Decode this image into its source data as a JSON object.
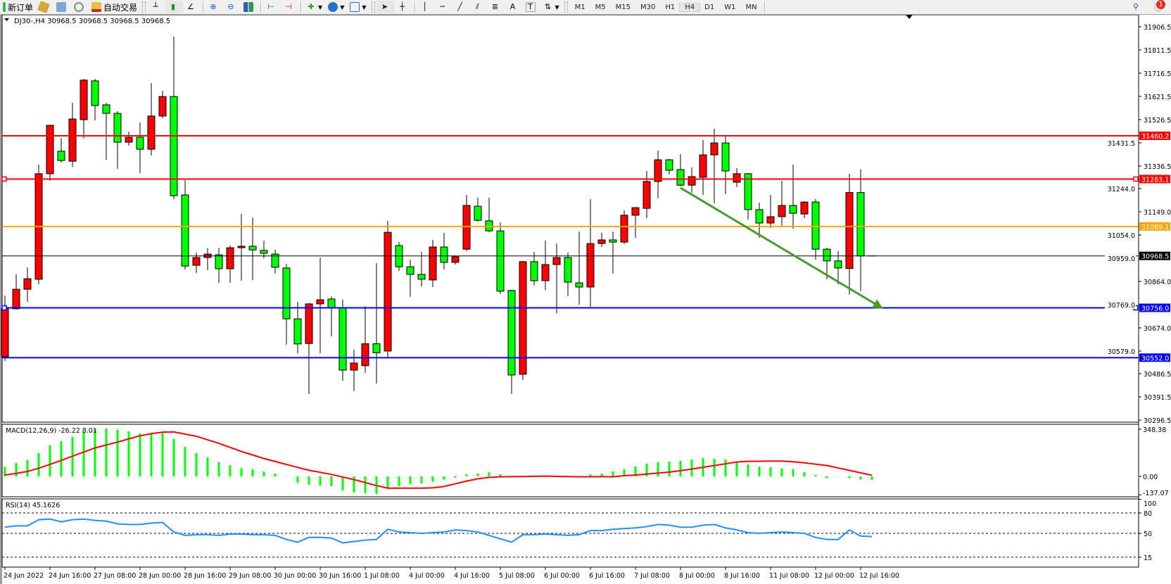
{
  "toolbar": {
    "new_order_label": "新订单",
    "auto_trading_label": "自动交易",
    "timeframes": [
      "M1",
      "M5",
      "M15",
      "M30",
      "H1",
      "H4",
      "D1",
      "W1",
      "MN"
    ],
    "active_timeframe": "H4",
    "notification_count": "1",
    "icons": [
      "new-order-icon",
      "history-icon",
      "navigator-icon",
      "signals-icon",
      "auto-trading-icon",
      "bar-chart-icon",
      "candlestick-icon",
      "line-chart-icon",
      "zoom-in-icon",
      "zoom-out-icon",
      "tile-windows-icon",
      "autoscroll-icon",
      "chart-shift-icon",
      "indicators-icon",
      "periods-icon",
      "templates-icon",
      "cursor-icon",
      "crosshair-icon",
      "vertical-line-icon",
      "horizontal-line-icon",
      "trendline-icon",
      "equidistant-channel-icon",
      "fibonacci-icon",
      "text-icon",
      "text-label-icon",
      "arrows-icon",
      "search-icon",
      "notification-icon"
    ]
  },
  "chart_header": "DJ30-,H4  30968.5 30968.5 30968.5 30968.5",
  "chart_data": [
    {
      "type": "candlestick",
      "symbol": "DJ30-",
      "timeframe": "H4",
      "up_color": "#ff0000",
      "down_color": "#00ff00",
      "price_ticks": [
        "31906.5",
        "31811.5",
        "31716.5",
        "31621.5",
        "31526.5",
        "31431.5",
        "31336.5",
        "31244.0",
        "31149.0",
        "31054.0",
        "30959.0",
        "30864.0",
        "30769.0",
        "30674.0",
        "30579.0",
        "30486.5",
        "30391.5",
        "30296.5"
      ],
      "ylim": [
        30296.5,
        31906.5
      ],
      "time_labels": [
        "24 Jun 2022",
        "24 Jun 16:00",
        "27 Jun 08:00",
        "28 Jun 00:00",
        "28 Jun 16:00",
        "29 Jun 08:00",
        "30 Jun 00:00",
        "30 Jun 16:00",
        "1 Jul 08:00",
        "4 Jul 00:00",
        "4 Jul 16:00",
        "5 Jul 08:00",
        "6 Jul 00:00",
        "6 Jul 16:00",
        "7 Jul 08:00",
        "8 Jul 00:00",
        "8 Jul 16:00",
        "11 Jul 08:00",
        "12 Jul 00:00",
        "12 Jul 16:00"
      ],
      "ohlc": [
        [
          30556,
          30806,
          30538,
          30754
        ],
        [
          30752,
          30893,
          30749,
          30832
        ],
        [
          30832,
          30922,
          30780,
          30875
        ],
        [
          30873,
          31342,
          30852,
          31305
        ],
        [
          31305,
          31505,
          31276,
          31503
        ],
        [
          31397,
          31451,
          31351,
          31359
        ],
        [
          31356,
          31595,
          31333,
          31529
        ],
        [
          31526,
          31693,
          31449,
          31688
        ],
        [
          31685,
          31693,
          31523,
          31584
        ],
        [
          31587,
          31595,
          31362,
          31552
        ],
        [
          31552,
          31561,
          31325,
          31434
        ],
        [
          31434,
          31477,
          31420,
          31454
        ],
        [
          31454,
          31515,
          31307,
          31405
        ],
        [
          31405,
          31676,
          31379,
          31541
        ],
        [
          31541,
          31644,
          31532,
          31621
        ],
        [
          31621,
          31866,
          31201,
          31215
        ],
        [
          31218,
          31279,
          30913,
          30927
        ],
        [
          30930,
          30982,
          30898,
          30962
        ],
        [
          30962,
          31000,
          30910,
          30976
        ],
        [
          30973,
          31002,
          30858,
          30916
        ],
        [
          30916,
          31011,
          30858,
          31002
        ],
        [
          31002,
          31140,
          30867,
          31008
        ],
        [
          31008,
          31126,
          30870,
          30993
        ],
        [
          30991,
          31031,
          30959,
          30979
        ],
        [
          30976,
          30994,
          30896,
          30922
        ],
        [
          30919,
          30936,
          30605,
          30711
        ],
        [
          30711,
          30780,
          30570,
          30608
        ],
        [
          30610,
          30777,
          30403,
          30772
        ],
        [
          30772,
          30962,
          30570,
          30789
        ],
        [
          30792,
          30803,
          30639,
          30757
        ],
        [
          30757,
          30789,
          30458,
          30501
        ],
        [
          30501,
          30585,
          30415,
          30530
        ],
        [
          30519,
          30763,
          30490,
          30609
        ],
        [
          30609,
          30939,
          30446,
          30572
        ],
        [
          30579,
          31112,
          30553,
          31065
        ],
        [
          31011,
          31025,
          30907,
          30924
        ],
        [
          30924,
          30953,
          30801,
          30893
        ],
        [
          30893,
          30985,
          30844,
          30873
        ],
        [
          30870,
          31034,
          30841,
          31005
        ],
        [
          31005,
          31063,
          30913,
          30942
        ],
        [
          30942,
          30971,
          30933,
          30965
        ],
        [
          30996,
          31218,
          30988,
          31175
        ],
        [
          31172,
          31207,
          31109,
          31114
        ],
        [
          31112,
          31207,
          31065,
          31071
        ],
        [
          31071,
          31106,
          30812,
          30824
        ],
        [
          30827,
          30830,
          30403,
          30481
        ],
        [
          30484,
          30948,
          30461,
          30945
        ],
        [
          30945,
          30985,
          30847,
          30867
        ],
        [
          30867,
          31031,
          30829,
          30933
        ],
        [
          30933,
          31019,
          30734,
          30962
        ],
        [
          30962,
          30982,
          30803,
          30861
        ],
        [
          30858,
          31068,
          30769,
          30841
        ],
        [
          30841,
          31201,
          30760,
          31019
        ],
        [
          31019,
          31063,
          31005,
          31034
        ],
        [
          31034,
          31068,
          30896,
          31025
        ],
        [
          31025,
          31155,
          31017,
          31135
        ],
        [
          31135,
          31169,
          31042,
          31166
        ],
        [
          31163,
          31316,
          31123,
          31273
        ],
        [
          31273,
          31400,
          31204,
          31362
        ],
        [
          31362,
          31365,
          31302,
          31319
        ],
        [
          31322,
          31385,
          31253,
          31258
        ],
        [
          31258,
          31331,
          31227,
          31293
        ],
        [
          31290,
          31443,
          31218,
          31382
        ],
        [
          31382,
          31489,
          31184,
          31431
        ],
        [
          31431,
          31463,
          31221,
          31316
        ],
        [
          31270,
          31328,
          31250,
          31305
        ],
        [
          31305,
          31308,
          31117,
          31158
        ],
        [
          31158,
          31187,
          31042,
          31103
        ],
        [
          31103,
          31218,
          31083,
          31129
        ],
        [
          31129,
          31276,
          31086,
          31175
        ],
        [
          31175,
          31342,
          31080,
          31143
        ],
        [
          31140,
          31192,
          31123,
          31189
        ],
        [
          31189,
          31201,
          30953,
          30996
        ],
        [
          30996,
          31002,
          30873,
          30948
        ],
        [
          30948,
          30988,
          30852,
          30919
        ],
        [
          30917,
          31305,
          30810,
          31228
        ],
        [
          31228,
          31323,
          30825,
          30968.5
        ],
        [
          30968.5,
          30968.5,
          30968.5,
          30968.5
        ]
      ],
      "horizontal_lines": [
        {
          "price": "31460.2",
          "color": "#ff0000"
        },
        {
          "price": "31283.1",
          "color": "#ff0000"
        },
        {
          "price": "31089.1",
          "color": "#ffa500"
        },
        {
          "price": "30968.5",
          "color": "#000000",
          "label_bg": "#000000"
        },
        {
          "price": "30756.0",
          "color": "#0000ff"
        },
        {
          "price": "30552.0",
          "color": "#0000ff"
        }
      ],
      "trendline": {
        "color": "#4a9a2a",
        "from": {
          "bar": 61,
          "price": 31247
        },
        "to": {
          "bar": 79,
          "price": 30752
        },
        "arrow": true
      }
    },
    {
      "type": "bar+line",
      "title": "MACD(12,26,9) -26.22 8.01",
      "axis_labels": [
        "348.38",
        "0.00",
        "-137.07"
      ],
      "ylim": [
        -137.07,
        348.38
      ],
      "histogram_color": "#00ff00",
      "signal_color": "#ff0000",
      "histogram": [
        71,
        99,
        120,
        172,
        229,
        260,
        291,
        331,
        348,
        354,
        343,
        333,
        317,
        322,
        322,
        276,
        218,
        172,
        140,
        104,
        83,
        62,
        52,
        36,
        21,
        2,
        -47,
        -62,
        -68,
        -73,
        -104,
        -120,
        -125,
        -130,
        -83,
        -73,
        -57,
        -52,
        -40,
        -25,
        -10,
        15,
        20,
        30,
        15,
        -10,
        -8,
        -5,
        -5,
        0,
        5,
        -3,
        16,
        21,
        36,
        52,
        73,
        94,
        104,
        109,
        114,
        125,
        135,
        130,
        125,
        109,
        88,
        73,
        68,
        57,
        52,
        31,
        10,
        -14,
        -2,
        -14,
        -24,
        -26.22
      ],
      "signal": [
        10,
        22,
        36,
        60,
        88,
        118,
        149,
        180,
        210,
        232,
        253,
        277,
        300,
        315,
        326,
        328,
        312,
        296,
        270,
        244,
        214,
        184,
        158,
        132,
        110,
        88,
        66,
        45,
        30,
        14,
        -5,
        -24,
        -46,
        -68,
        -87,
        -87,
        -87,
        -87,
        -85,
        -75,
        -55,
        -35,
        -18,
        -8,
        -3,
        -2,
        -1,
        0,
        2,
        0,
        -2,
        -3,
        -3,
        -2,
        -3,
        5,
        10,
        17,
        24,
        31,
        42,
        54,
        67,
        80,
        93,
        106,
        111,
        112,
        113,
        113,
        108,
        100,
        90,
        80,
        62,
        44,
        26,
        8.01
      ]
    },
    {
      "type": "line",
      "title": "RSI(14) 45.1626",
      "axis_labels": [
        "100",
        "80",
        "50",
        "15"
      ],
      "levels": [
        80,
        50,
        15
      ],
      "ylim": [
        0,
        100
      ],
      "color": "#1e90ff",
      "values": [
        59,
        61,
        61,
        70,
        71,
        67,
        70,
        71,
        69,
        68,
        64,
        63,
        63,
        65,
        66,
        52,
        47,
        48,
        48,
        47,
        49,
        49,
        48,
        48,
        47,
        41,
        37,
        44,
        44,
        43,
        36,
        38,
        40,
        41,
        56,
        52,
        51,
        50,
        51,
        52,
        55,
        54,
        52,
        47,
        42,
        37,
        48,
        48,
        49,
        48,
        47,
        48,
        54,
        54,
        56,
        57,
        58,
        60,
        63,
        62,
        59,
        59,
        62,
        63,
        58,
        55,
        51,
        50,
        51,
        52,
        51,
        50,
        44,
        41,
        41,
        55,
        46,
        45.1626
      ]
    }
  ]
}
